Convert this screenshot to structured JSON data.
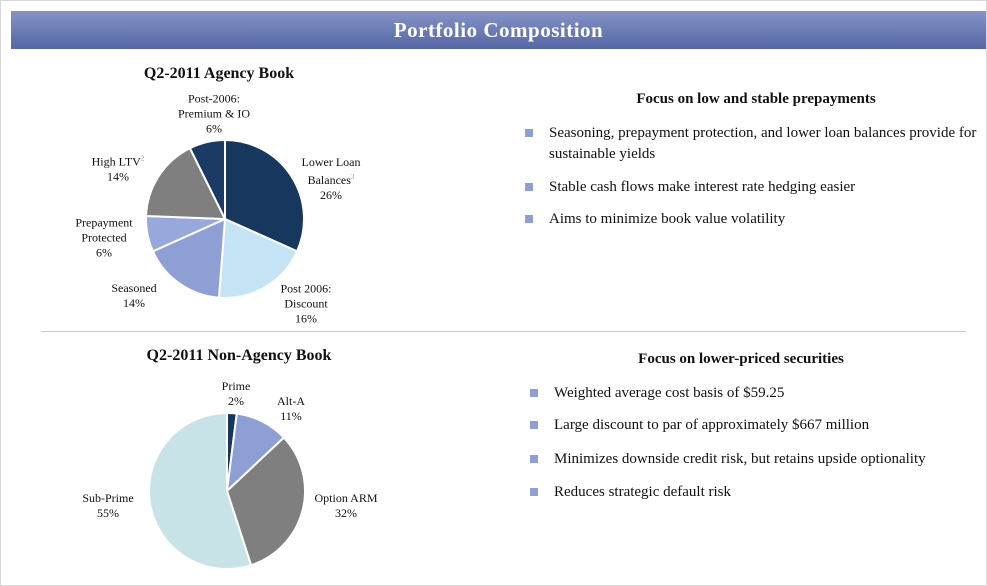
{
  "title": "Portfolio Composition",
  "chart_data": [
    {
      "type": "pie",
      "title": "Q2-2011 Agency Book",
      "categories": [
        "Lower Loan Balances",
        "Post 2006: Discount",
        "Seasoned",
        "Prepayment Protected",
        "High LTV",
        "Post-2006: Premium & IO"
      ],
      "notes": [
        "3",
        null,
        null,
        null,
        "2",
        null
      ],
      "values": [
        26,
        16,
        14,
        6,
        14,
        6
      ],
      "value_labels": [
        "26%",
        "16%",
        "14%",
        "6%",
        "14%",
        "6%"
      ],
      "colors": [
        "#17375e",
        "#c4e3f5",
        "#8e9fd6",
        "#97a8dc",
        "#7f7f7f",
        "#1b3a66"
      ]
    },
    {
      "type": "pie",
      "title": "Q2-2011 Non-Agency Book",
      "categories": [
        "Prime",
        "Alt-A",
        "Option ARM",
        "Sub-Prime"
      ],
      "values": [
        2,
        11,
        32,
        55
      ],
      "value_labels": [
        "2%",
        "11%",
        "32%",
        "55%"
      ],
      "colors": [
        "#17375e",
        "#8e9fd6",
        "#7f7f7f",
        "#c8e3e8"
      ]
    }
  ],
  "sections": [
    {
      "heading": "Focus on low and stable prepayments",
      "bullets": [
        "Seasoning, prepayment protection, and lower loan balances provide for sustainable yields",
        "Stable cash flows make interest rate hedging easier",
        "Aims to minimize book value volatility"
      ]
    },
    {
      "heading": "Focus on lower-priced securities",
      "bullets": [
        "Weighted average cost basis of $59.25",
        "Large discount to par of  approximately $667 million",
        "Minimizes downside credit risk, but retains upside optionality",
        "Reduces strategic default risk"
      ]
    }
  ]
}
